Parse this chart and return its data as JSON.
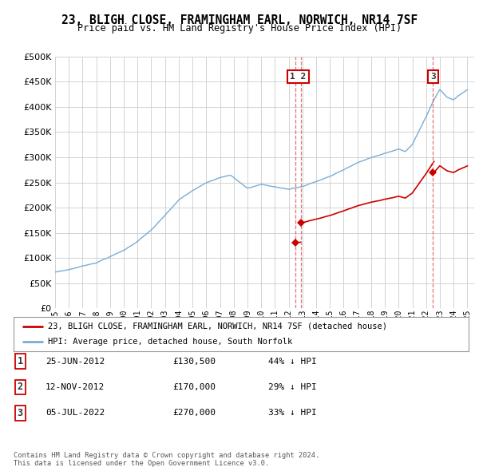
{
  "title": "23, BLIGH CLOSE, FRAMINGHAM EARL, NORWICH, NR14 7SF",
  "subtitle": "Price paid vs. HM Land Registry's House Price Index (HPI)",
  "ytick_values": [
    0,
    50000,
    100000,
    150000,
    200000,
    250000,
    300000,
    350000,
    400000,
    450000,
    500000
  ],
  "xlim": [
    1995.0,
    2025.5
  ],
  "ylim": [
    0,
    500000
  ],
  "sale_yr": [
    2012.479,
    2012.869,
    2022.508
  ],
  "sale_prices": [
    130500,
    170000,
    270000
  ],
  "sale_labels": [
    "1",
    "2",
    "3"
  ],
  "legend_entries": [
    "23, BLIGH CLOSE, FRAMINGHAM EARL, NORWICH, NR14 7SF (detached house)",
    "HPI: Average price, detached house, South Norfolk"
  ],
  "table_rows": [
    {
      "label": "1",
      "date": "25-JUN-2012",
      "price": "£130,500",
      "pct": "44% ↓ HPI"
    },
    {
      "label": "2",
      "date": "12-NOV-2012",
      "price": "£170,000",
      "pct": "29% ↓ HPI"
    },
    {
      "label": "3",
      "date": "05-JUL-2022",
      "price": "£270,000",
      "pct": "33% ↓ HPI"
    }
  ],
  "footer": "Contains HM Land Registry data © Crown copyright and database right 2024.\nThis data is licensed under the Open Government Licence v3.0.",
  "hpi_color": "#7aadd4",
  "sale_color": "#cc0000",
  "box_color": "#cc0000",
  "vline_color": "#dd6666",
  "bg_color": "#ffffff",
  "grid_color": "#cccccc",
  "annotation_label_color": "#333333"
}
